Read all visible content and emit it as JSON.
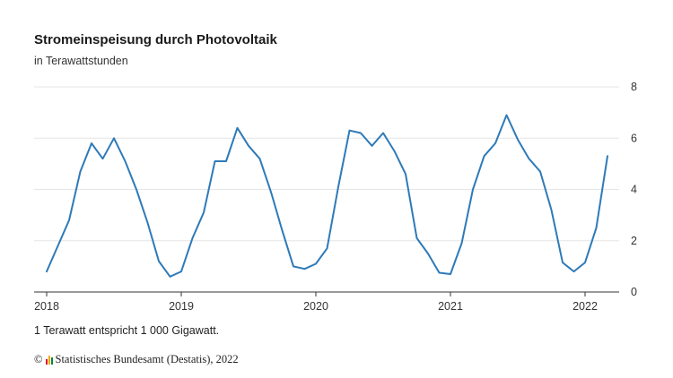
{
  "title": "Stromeinspeisung durch Photovoltaik",
  "subtitle": "in Terawattstunden",
  "note": "1 Terawatt entspricht 1 000 Gigawatt.",
  "source": {
    "copyright": "©",
    "text": "Statistisches Bundesamt (Destatis), 2022",
    "logo_colors": [
      "#e2001a",
      "#f7a600",
      "#00893a"
    ]
  },
  "colors": {
    "line": "#2e7ab8",
    "grid": "#e6e6e6",
    "axis": "#333333"
  },
  "chart_data": {
    "type": "line",
    "title": "Stromeinspeisung durch Photovoltaik",
    "ylabel": "in Terawattstunden",
    "x": [
      "2018-01",
      "2018-02",
      "2018-03",
      "2018-04",
      "2018-05",
      "2018-06",
      "2018-07",
      "2018-08",
      "2018-09",
      "2018-10",
      "2018-11",
      "2018-12",
      "2019-01",
      "2019-02",
      "2019-03",
      "2019-04",
      "2019-05",
      "2019-06",
      "2019-07",
      "2019-08",
      "2019-09",
      "2019-10",
      "2019-11",
      "2019-12",
      "2020-01",
      "2020-02",
      "2020-03",
      "2020-04",
      "2020-05",
      "2020-06",
      "2020-07",
      "2020-08",
      "2020-09",
      "2020-10",
      "2020-11",
      "2020-12",
      "2021-01",
      "2021-02",
      "2021-03",
      "2021-04",
      "2021-05",
      "2021-06",
      "2021-07",
      "2021-08",
      "2021-09",
      "2021-10",
      "2021-11",
      "2021-12",
      "2022-01",
      "2022-02",
      "2022-03"
    ],
    "series": [
      {
        "values": [
          0.8,
          1.8,
          2.8,
          4.7,
          5.8,
          5.2,
          6.0,
          5.1,
          4.0,
          2.7,
          1.2,
          0.6,
          0.8,
          2.1,
          3.1,
          5.1,
          5.1,
          6.4,
          5.7,
          5.2,
          3.9,
          2.4,
          1.0,
          0.9,
          1.1,
          1.7,
          4.1,
          6.3,
          6.2,
          5.7,
          6.2,
          5.5,
          4.6,
          2.1,
          1.5,
          0.75,
          0.7,
          1.9,
          4.0,
          5.3,
          5.8,
          6.9,
          5.95,
          5.2,
          4.7,
          3.2,
          1.15,
          0.8,
          1.15,
          2.5,
          5.3
        ]
      }
    ],
    "x_ticks": [
      "2018",
      "2019",
      "2020",
      "2021",
      "2022"
    ],
    "y_ticks": [
      0,
      2,
      4,
      6,
      8
    ],
    "ylim": [
      0,
      8
    ],
    "grid": "horizontal"
  }
}
